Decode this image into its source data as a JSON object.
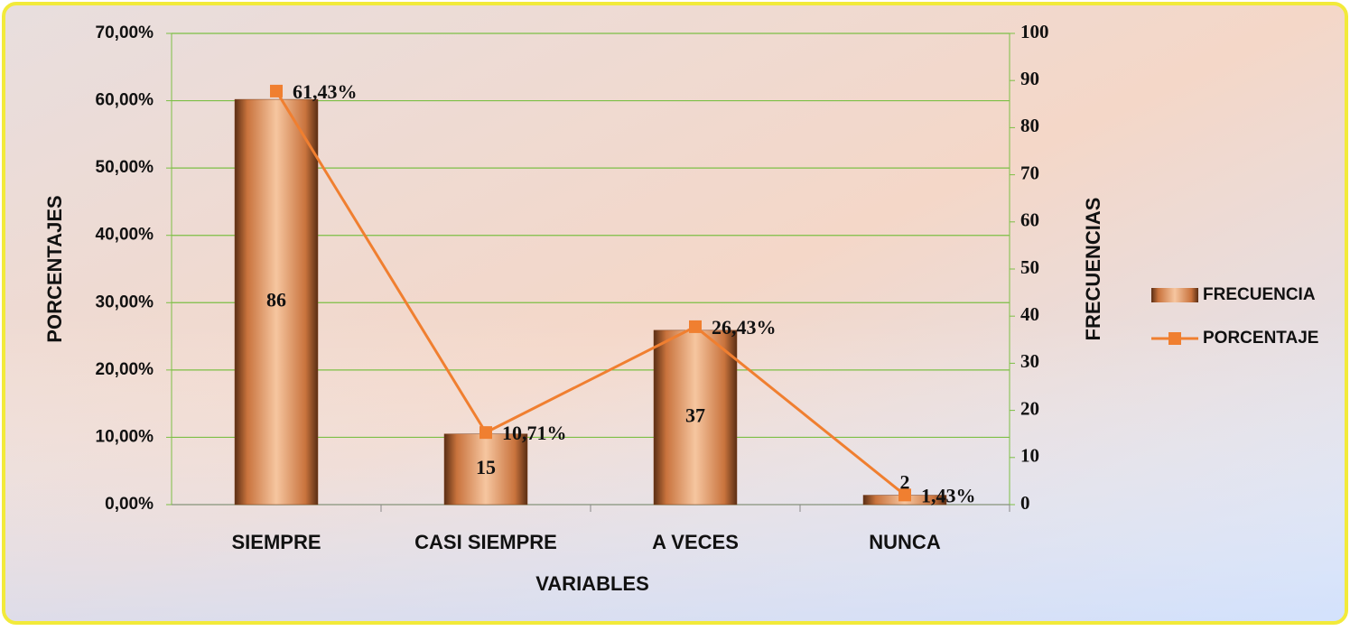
{
  "chart_data": {
    "type": "combo",
    "categories": [
      "SIEMPRE",
      "CASI SIEMPRE",
      "A VECES",
      "NUNCA"
    ],
    "series": [
      {
        "name": "FRECUENCIA",
        "type": "bar",
        "axis": "y2",
        "color": "#e08a55",
        "values": [
          86,
          15,
          37,
          2
        ]
      },
      {
        "name": "PORCENTAJE",
        "type": "line",
        "axis": "y",
        "color": "#f07f30",
        "values": [
          61.43,
          10.71,
          26.43,
          1.43
        ],
        "value_labels": [
          "61,43%",
          "10,71%",
          "26,43%",
          "1,43%"
        ]
      }
    ],
    "xlabel": "VARIABLES",
    "ylabel": "PORCENTAJES",
    "y2label": "FRECUENCIAS",
    "ylim": [
      0,
      70
    ],
    "yticks": [
      {
        "value": 0,
        "label": "0,00%"
      },
      {
        "value": 10,
        "label": "10,00%"
      },
      {
        "value": 20,
        "label": "20,00%"
      },
      {
        "value": 30,
        "label": "30,00%"
      },
      {
        "value": 40,
        "label": "40,00%"
      },
      {
        "value": 50,
        "label": "50,00%"
      },
      {
        "value": 60,
        "label": "60,00%"
      },
      {
        "value": 70,
        "label": "70,00%"
      }
    ],
    "y2lim": [
      0,
      100
    ],
    "y2ticks": [
      0,
      10,
      20,
      30,
      40,
      50,
      60,
      70,
      80,
      90,
      100
    ],
    "grid": true,
    "legend": "right"
  }
}
